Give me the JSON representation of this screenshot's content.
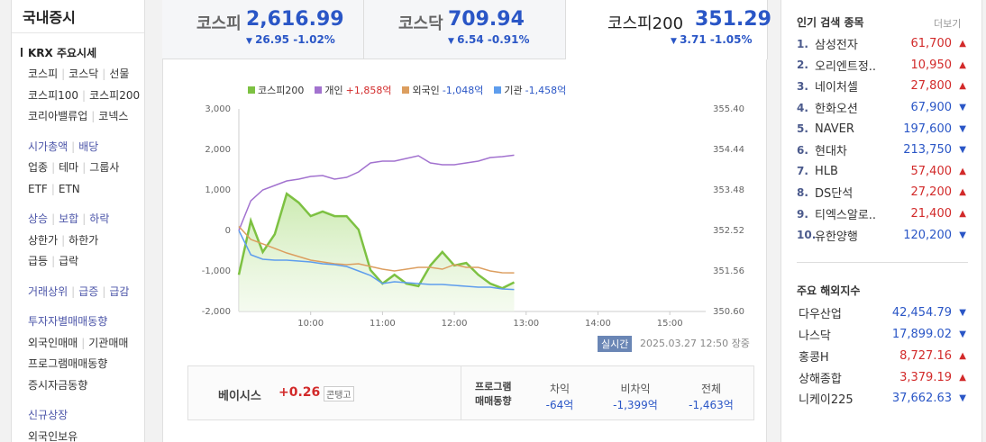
{
  "sidebar": {
    "title": "국내증시",
    "heading": "KRX 주요시세",
    "groups": [
      [
        [
          "코스피",
          "코스닥",
          "선물"
        ],
        [
          "코스피100",
          "코스피200"
        ],
        [
          "코리아밸류업",
          "코넥스"
        ]
      ],
      [
        [
          "시가총액",
          "배당"
        ],
        [
          "업종",
          "테마",
          "그룹사"
        ],
        [
          "ETF",
          "ETN"
        ]
      ],
      [
        [
          "상승",
          "보합",
          "하락"
        ],
        [
          "상한가",
          "하한가"
        ],
        [
          "급등",
          "급락"
        ]
      ],
      [
        [
          "거래상위",
          "급증",
          "급감"
        ]
      ],
      [
        [
          "투자자별매매동향"
        ],
        [
          "외국인매매",
          "기관매매"
        ],
        [
          "프로그램매매동향"
        ],
        [
          "증시자금동향"
        ]
      ],
      [
        [
          "신규상장"
        ],
        [
          "외국인보유"
        ]
      ]
    ]
  },
  "indices": [
    {
      "name": "코스피",
      "value": "2,616.99",
      "change": "26.95",
      "rate": "-1.02%"
    },
    {
      "name": "코스닥",
      "value": "709.94",
      "change": "6.54",
      "rate": "-0.91%"
    },
    {
      "name": "코스피200",
      "value": "351.29",
      "change": "3.71",
      "rate": "-1.05%"
    }
  ],
  "chart": {
    "type": "line",
    "x": [
      "09:00",
      "09:10",
      "09:20",
      "09:30",
      "09:40",
      "09:50",
      "10:00",
      "10:10",
      "10:20",
      "10:30",
      "10:40",
      "10:50",
      "11:00",
      "11:10",
      "11:20",
      "11:30",
      "11:40",
      "11:50",
      "12:00",
      "12:10",
      "12:20",
      "12:30",
      "12:40",
      "12:50"
    ],
    "xlim": [
      "09:00",
      "15:30"
    ],
    "xticks": [
      "10:00",
      "11:00",
      "12:00",
      "13:00",
      "14:00",
      "15:00"
    ],
    "ylim": [
      -2000,
      3000
    ],
    "yticks": [
      {
        "value": 3000,
        "label": "3,000"
      },
      {
        "value": 2000,
        "label": "2,000"
      },
      {
        "value": 1000,
        "label": "1,000"
      },
      0,
      {
        "value": -1000,
        "label": "-1,000"
      },
      {
        "value": -2000,
        "label": "-2,000"
      }
    ],
    "y2lim": [
      350.6,
      355.4
    ],
    "y2ticks": [
      {
        "value": 355.4,
        "label": "355.40"
      },
      354.44,
      353.48,
      352.52,
      351.56,
      {
        "value": 350.6,
        "label": "350.60"
      }
    ],
    "series": [
      {
        "name": "코스피200",
        "color": "#7dc142",
        "axis": "y2",
        "area": true,
        "values": [
          351.47,
          352.75,
          352.01,
          352.43,
          353.39,
          353.18,
          352.86,
          352.97,
          352.86,
          352.86,
          352.54,
          351.58,
          351.26,
          351.47,
          351.26,
          351.2,
          351.69,
          352.01,
          351.69,
          351.75,
          351.47,
          351.26,
          351.15,
          351.29
        ]
      },
      {
        "name": "개인",
        "legend_value": "+1,858억",
        "color": "#a272cf",
        "values": [
          0,
          733,
          1000,
          1111,
          1222,
          1267,
          1333,
          1356,
          1267,
          1311,
          1444,
          1667,
          1711,
          1711,
          1778,
          1844,
          1667,
          1622,
          1622,
          1667,
          1711,
          1800,
          1822,
          1858
        ]
      },
      {
        "name": "외국인",
        "legend_value": "-1,048억",
        "color": "#dc9e5f",
        "values": [
          100,
          -222,
          -333,
          -444,
          -556,
          -644,
          -733,
          -778,
          -822,
          -844,
          -822,
          -889,
          -956,
          -1000,
          -956,
          -911,
          -911,
          -956,
          -844,
          -911,
          -911,
          -1000,
          -1044,
          -1048
        ]
      },
      {
        "name": "기관",
        "legend_value": "-1,458억",
        "color": "#5e9ded",
        "values": [
          0,
          -600,
          -711,
          -733,
          -733,
          -756,
          -778,
          -822,
          -844,
          -889,
          -1000,
          -1111,
          -1311,
          -1267,
          -1289,
          -1311,
          -1333,
          -1333,
          -1356,
          -1378,
          -1400,
          -1400,
          -1444,
          -1458
        ]
      }
    ]
  },
  "status": {
    "badge": "실시간",
    "timestamp": "2025.03.27 12:50",
    "state": "장중"
  },
  "basis": {
    "label": "베이시스",
    "value": "+0.26",
    "tag": "콘탱고"
  },
  "program": {
    "label_lines": [
      "프로그램",
      "매매동향"
    ],
    "columns": [
      {
        "label": "차익",
        "value": "-64억"
      },
      {
        "label": "비차익",
        "value": "-1,399억"
      },
      {
        "label": "전체",
        "value": "-1,463억"
      }
    ]
  },
  "popular": {
    "title": "인기 검색 종목",
    "more": "더보기",
    "items": [
      {
        "rank": "1.",
        "name": "삼성전자",
        "price": "61,700",
        "direction": "up"
      },
      {
        "rank": "2.",
        "name": "오리엔트정..",
        "price": "10,950",
        "direction": "up"
      },
      {
        "rank": "3.",
        "name": "네이처셀",
        "price": "27,800",
        "direction": "up"
      },
      {
        "rank": "4.",
        "name": "한화오션",
        "price": "67,900",
        "direction": "down"
      },
      {
        "rank": "5.",
        "name": "NAVER",
        "price": "197,600",
        "direction": "down"
      },
      {
        "rank": "6.",
        "name": "현대차",
        "price": "213,750",
        "direction": "down"
      },
      {
        "rank": "7.",
        "name": "HLB",
        "price": "57,400",
        "direction": "up"
      },
      {
        "rank": "8.",
        "name": "DS단석",
        "price": "27,200",
        "direction": "up"
      },
      {
        "rank": "9.",
        "name": "티엑스알로..",
        "price": "21,400",
        "direction": "up"
      },
      {
        "rank": "10.",
        "name": "유한양행",
        "price": "120,200",
        "direction": "down"
      }
    ]
  },
  "overseas": {
    "title": "주요 해외지수",
    "items": [
      {
        "name": "다우산업",
        "value": "42,454.79",
        "direction": "down"
      },
      {
        "name": "나스닥",
        "value": "17,899.02",
        "direction": "down"
      },
      {
        "name": "홍콩H",
        "value": "8,727.16",
        "direction": "up"
      },
      {
        "name": "상해종합",
        "value": "3,379.19",
        "direction": "up"
      },
      {
        "name": "니케이225",
        "value": "37,662.63",
        "direction": "down"
      }
    ]
  }
}
